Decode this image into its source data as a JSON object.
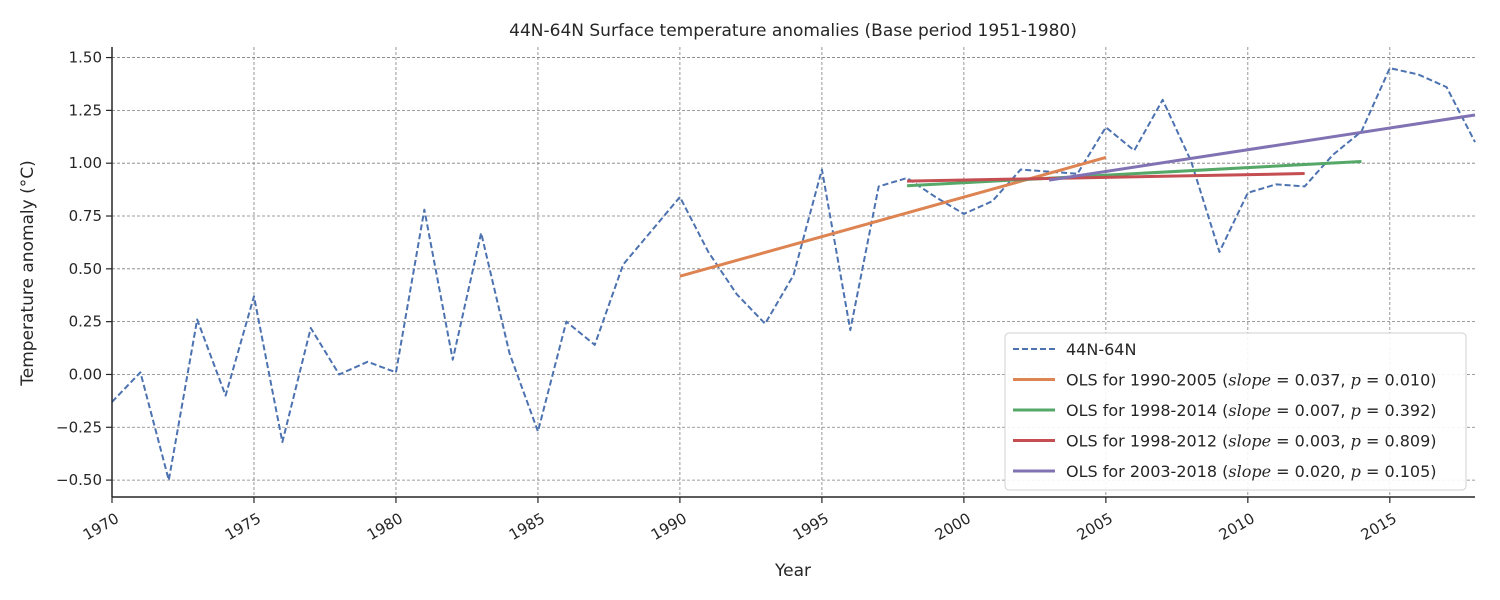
{
  "chart_data": {
    "type": "line",
    "title": "44N-64N Surface temperature anomalies (Base period 1951-1980)",
    "xlabel": "Year",
    "ylabel": "Temperature anomaly (°C)",
    "xlim": [
      1970,
      2018
    ],
    "ylim": [
      -0.58,
      1.55
    ],
    "xticks": [
      1970,
      1975,
      1980,
      1985,
      1990,
      1995,
      2000,
      2005,
      2010,
      2015
    ],
    "yticks": [
      -0.5,
      -0.25,
      0.0,
      0.25,
      0.5,
      0.75,
      1.0,
      1.25,
      1.5
    ],
    "ytick_labels": [
      "−0.50",
      "−0.25",
      "0.00",
      "0.25",
      "0.50",
      "0.75",
      "1.00",
      "1.25",
      "1.50"
    ],
    "grid": true,
    "legend_position": "lower-right",
    "colors": {
      "anomaly": "#4c72b0",
      "ols_1990_2005": "#dd8452",
      "ols_1998_2014": "#55a868",
      "ols_1998_2012": "#c44e52",
      "ols_2003_2018": "#8172b3"
    },
    "series": [
      {
        "name": "44N-64N",
        "style": "dashed",
        "color_key": "anomaly",
        "x": [
          1970,
          1971,
          1972,
          1973,
          1974,
          1975,
          1976,
          1977,
          1978,
          1979,
          1980,
          1981,
          1982,
          1983,
          1984,
          1985,
          1986,
          1987,
          1988,
          1989,
          1990,
          1991,
          1992,
          1993,
          1994,
          1995,
          1996,
          1997,
          1998,
          1999,
          2000,
          2001,
          2002,
          2003,
          2004,
          2005,
          2006,
          2007,
          2008,
          2009,
          2010,
          2011,
          2012,
          2013,
          2014,
          2015,
          2016,
          2017,
          2018
        ],
        "y": [
          -0.13,
          0.01,
          -0.5,
          0.26,
          -0.1,
          0.37,
          -0.32,
          0.22,
          0.0,
          0.06,
          0.01,
          0.78,
          0.07,
          0.67,
          0.1,
          -0.27,
          0.25,
          0.14,
          0.52,
          0.68,
          0.84,
          0.58,
          0.38,
          0.24,
          0.47,
          0.97,
          0.21,
          0.89,
          0.93,
          0.84,
          0.76,
          0.82,
          0.97,
          0.96,
          0.95,
          1.17,
          1.06,
          1.3,
          1.01,
          0.58,
          0.86,
          0.9,
          0.89,
          1.04,
          1.15,
          1.45,
          1.42,
          1.36,
          1.1
        ]
      },
      {
        "name": "OLS for 1990-2005",
        "slope": "0.037",
        "p": "0.010",
        "style": "solid",
        "color_key": "ols_1990_2005",
        "x": [
          1990,
          2005
        ],
        "y": [
          0.465,
          1.027
        ]
      },
      {
        "name": "OLS for 1998-2014",
        "slope": "0.007",
        "p": "0.392",
        "style": "solid",
        "color_key": "ols_1998_2014",
        "x": [
          1998,
          2014
        ],
        "y": [
          0.893,
          1.008
        ]
      },
      {
        "name": "OLS for 1998-2012",
        "slope": "0.003",
        "p": "0.809",
        "style": "solid",
        "color_key": "ols_1998_2012",
        "x": [
          1998,
          2012
        ],
        "y": [
          0.915,
          0.951
        ]
      },
      {
        "name": "OLS for 2003-2018",
        "slope": "0.020",
        "p": "0.105",
        "style": "solid",
        "color_key": "ols_2003_2018",
        "x": [
          2003,
          2018
        ],
        "y": [
          0.92,
          1.228
        ]
      }
    ]
  }
}
